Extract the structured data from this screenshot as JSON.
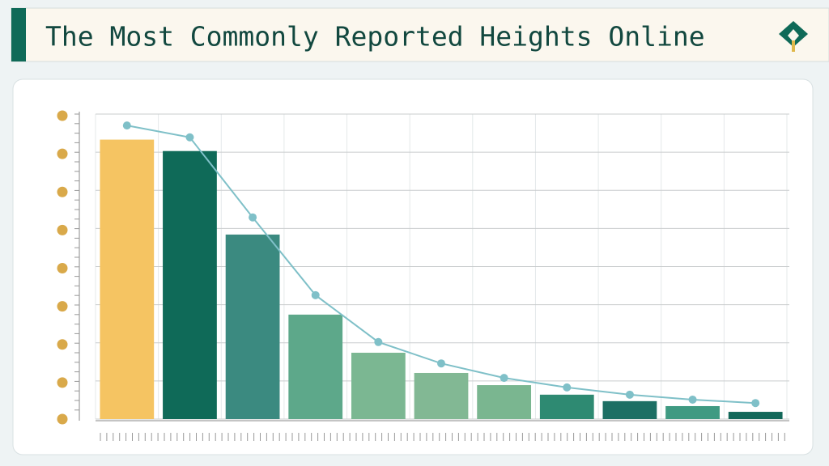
{
  "chart_data": {
    "type": "bar",
    "title": "The Most Commonly Reported Heights Online",
    "categories": [
      null,
      null,
      null,
      null,
      null,
      null,
      null,
      null,
      null,
      null,
      null
    ],
    "series": [
      {
        "type": "bar",
        "colors": [
          "#f5c462",
          "#0f6a58",
          "#3b8a80",
          "#5da88a",
          "#7bb792",
          "#82b894",
          "#7ab690",
          "#2e8a72",
          "#1d6f64",
          "#3f9a82",
          "#13685a"
        ],
        "values": [
          7.33,
          7.03,
          4.84,
          2.74,
          1.74,
          1.21,
          0.89,
          0.64,
          0.47,
          0.34,
          0.19
        ]
      },
      {
        "type": "line",
        "color": "#7fc0c8",
        "values": [
          7.7,
          7.39,
          5.29,
          3.25,
          2.02,
          1.46,
          1.08,
          0.83,
          0.64,
          0.51,
          0.42
        ]
      }
    ],
    "ylim": [
      0,
      8
    ],
    "yticks": [
      0,
      1,
      2,
      3,
      4,
      5,
      6,
      7,
      8
    ],
    "grid": true
  }
}
